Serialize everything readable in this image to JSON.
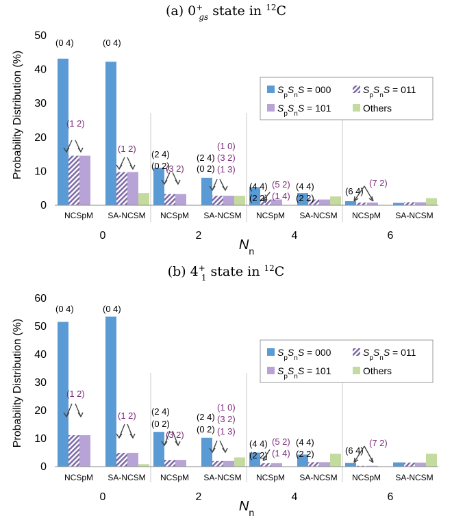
{
  "chart_data": [
    {
      "type": "bar",
      "title_prefix": "(a) 0",
      "title_sup": "+",
      "title_sub": "gs",
      "title_state": " state in ",
      "title_iso": "12",
      "title_elem": "C",
      "ylabel": "Probability Distribution (%)",
      "xlabel_main": "N",
      "xlabel_sub": "n",
      "ylim": [
        0,
        50
      ],
      "yticks": [
        "0",
        "10",
        "20",
        "30",
        "40",
        "50"
      ],
      "groups": [
        "0",
        "2",
        "4",
        "6"
      ],
      "methods": [
        "NCSpM",
        "SA-NCSM",
        "NCSpM",
        "SA-NCSM",
        "NCSpM",
        "SA-NCSM",
        "NCSpM",
        "SA-NCSM"
      ],
      "series": [
        {
          "name": "S_pS_nS = 000",
          "color": "#5b9bd5",
          "values": [
            43.2,
            42.3,
            11.0,
            8.1,
            5.3,
            3.6,
            1.2,
            0.7
          ]
        },
        {
          "name": "S_pS_nS = 011",
          "color": "#7f6aa8",
          "values": [
            14.6,
            9.8,
            3.3,
            2.8,
            1.7,
            1.7,
            0.8,
            0.9
          ]
        },
        {
          "name": "S_pS_nS = 101",
          "color": "#b7a3d6",
          "values": [
            14.6,
            9.8,
            3.3,
            2.8,
            1.7,
            1.7,
            0.8,
            0.9
          ]
        },
        {
          "name": "Others",
          "color": "#c4dba0",
          "values": [
            0,
            3.6,
            0,
            2.8,
            0,
            2.6,
            0,
            2.1
          ]
        }
      ],
      "legend": {
        "l1_s1": "S",
        "l1_p": "p",
        "l1_s2": "S",
        "l1_n": "n",
        "l1_s3": "S",
        "l1_val": " = 000",
        "l2_s1": "S",
        "l2_p": "p",
        "l2_s2": "S",
        "l2_n": "n",
        "l2_s3": "S",
        "l2_val": " = 011",
        "l3_s1": "S",
        "l3_p": "p",
        "l3_s2": "S",
        "l3_n": "n",
        "l3_s3": "S",
        "l3_val": " = 101",
        "others": "Others"
      },
      "annotations": {
        "g0_ncspm_top": "(0 4)",
        "g0_sa_top": "(0 4)",
        "g0_ncspm_p": "(1 2)",
        "g0_sa_p": "(1 2)",
        "g2_ncspm_b1": "(2 4)",
        "g2_ncspm_b2": "(0 2)",
        "g2_ncspm_p": "(3 2)",
        "g2_sa_b1": "(2 4)",
        "g2_sa_b2": "(0 2)",
        "g2_sa_p1": "(1 0)",
        "g2_sa_p2": "(3 2)",
        "g2_sa_p3": "(1 3)",
        "g4_ncspm_b1": "(4 4)",
        "g4_ncspm_b2": "(2 2)",
        "g4_ncspm_p1": "(5 2)",
        "g4_ncspm_p2": "(1 4)",
        "g4_sa_b1": "(4 4)",
        "g4_sa_b2": "(2 2)",
        "g6_ncspm_b": "(6 4)",
        "g6_ncspm_p": "(7 2)"
      }
    },
    {
      "type": "bar",
      "title_prefix": "(b) 4",
      "title_sup": "+",
      "title_sub": "1",
      "title_state": " state in ",
      "title_iso": "12",
      "title_elem": "C",
      "ylabel": "Probability Distribution (%)",
      "xlabel_main": "N",
      "xlabel_sub": "n",
      "ylim": [
        0,
        60
      ],
      "yticks": [
        "0",
        "10",
        "20",
        "30",
        "40",
        "50",
        "60"
      ],
      "groups": [
        "0",
        "2",
        "4",
        "6"
      ],
      "methods": [
        "NCSpM",
        "SA-NCSM",
        "NCSpM",
        "SA-NCSM",
        "NCSpM",
        "SA-NCSM",
        "NCSpM",
        "SA-NCSM"
      ],
      "series": [
        {
          "name": "S_pS_nS = 000",
          "color": "#5b9bd5",
          "values": [
            51.6,
            53.5,
            12.4,
            10.3,
            5.0,
            4.3,
            1.3,
            1.5
          ]
        },
        {
          "name": "S_pS_nS = 011",
          "color": "#7f6aa8",
          "values": [
            11.2,
            4.9,
            2.4,
            2.0,
            1.2,
            1.6,
            0.3,
            1.4
          ]
        },
        {
          "name": "S_pS_nS = 101",
          "color": "#b7a3d6",
          "values": [
            11.2,
            4.9,
            2.4,
            2.0,
            1.2,
            1.6,
            0.3,
            1.4
          ]
        },
        {
          "name": "Others",
          "color": "#c4dba0",
          "values": [
            0,
            0.9,
            0,
            3.3,
            0,
            4.6,
            0,
            4.6
          ]
        }
      ],
      "legend": {
        "l1_s1": "S",
        "l1_p": "p",
        "l1_s2": "S",
        "l1_n": "n",
        "l1_s3": "S",
        "l1_val": " = 000",
        "l2_s1": "S",
        "l2_p": "p",
        "l2_s2": "S",
        "l2_n": "n",
        "l2_s3": "S",
        "l2_val": " = 011",
        "l3_s1": "S",
        "l3_p": "p",
        "l3_s2": "S",
        "l3_n": "n",
        "l3_s3": "S",
        "l3_val": " = 101",
        "others": "Others"
      },
      "annotations": {
        "g0_ncspm_top": "(0 4)",
        "g0_sa_top": "(0 4)",
        "g0_ncspm_p": "(1 2)",
        "g0_sa_p": "(1 2)",
        "g2_ncspm_b1": "(2 4)",
        "g2_ncspm_b2": "(0 2)",
        "g2_ncspm_p": "(3 2)",
        "g2_sa_b1": "(2 4)",
        "g2_sa_b2": "(0 2)",
        "g2_sa_p1": "(1 0)",
        "g2_sa_p2": "(3 2)",
        "g2_sa_p3": "(1 3)",
        "g4_ncspm_b1": "(4 4)",
        "g4_ncspm_b2": "(2 2)",
        "g4_ncspm_p1": "(5 2)",
        "g4_ncspm_p2": "(1 4)",
        "g4_sa_b1": "(4 4)",
        "g4_sa_b2": "(2 2)",
        "g6_ncspm_b": "(6 4)",
        "g6_ncspm_p": "(7 2)"
      }
    }
  ]
}
